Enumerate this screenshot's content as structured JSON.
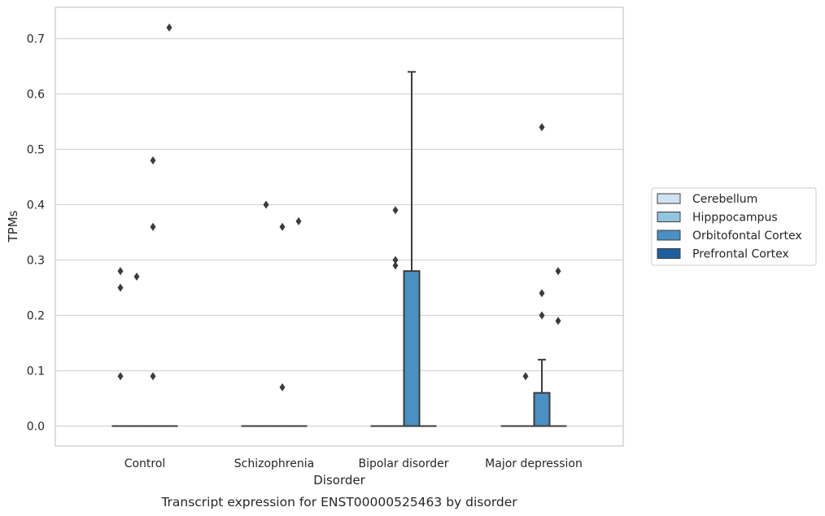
{
  "chart_data": {
    "type": "box",
    "title": "",
    "caption": "Transcript expression for ENST00000525463 by disorder",
    "xlabel": "Disorder",
    "ylabel": "TPMs",
    "ylim": [
      -0.035,
      0.76
    ],
    "yticks": [
      0.0,
      0.1,
      0.2,
      0.3,
      0.4,
      0.5,
      0.6,
      0.7
    ],
    "ytick_labels": [
      "0.0",
      "0.1",
      "0.2",
      "0.3",
      "0.4",
      "0.5",
      "0.6",
      "0.7"
    ],
    "grid": "horizontal",
    "legend_position": "right",
    "categories": [
      "Control",
      "Schizophrenia",
      "Bipolar disorder",
      "Major depression"
    ],
    "series": [
      {
        "name": "Cerebellum",
        "color": "#cfe1f2",
        "boxes": [
          {
            "q1": 0,
            "median": 0,
            "q3": 0,
            "whisker_low": 0,
            "whisker_high": 0,
            "outliers": [
              0.09,
              0.25,
              0.28
            ]
          },
          {
            "q1": 0,
            "median": 0,
            "q3": 0,
            "whisker_low": 0,
            "whisker_high": 0,
            "outliers": []
          },
          {
            "q1": 0,
            "median": 0,
            "q3": 0,
            "whisker_low": 0,
            "whisker_high": 0,
            "outliers": []
          },
          {
            "q1": 0,
            "median": 0,
            "q3": 0,
            "whisker_low": 0,
            "whisker_high": 0,
            "outliers": []
          }
        ]
      },
      {
        "name": "Hipppocampus",
        "color": "#93c4de",
        "boxes": [
          {
            "q1": 0,
            "median": 0,
            "q3": 0,
            "whisker_low": 0,
            "whisker_high": 0,
            "outliers": [
              0.27
            ]
          },
          {
            "q1": 0,
            "median": 0,
            "q3": 0,
            "whisker_low": 0,
            "whisker_high": 0,
            "outliers": [
              0.4
            ]
          },
          {
            "q1": 0,
            "median": 0,
            "q3": 0,
            "whisker_low": 0,
            "whisker_high": 0,
            "outliers": [
              0.29,
              0.3,
              0.39
            ]
          },
          {
            "q1": 0,
            "median": 0,
            "q3": 0,
            "whisker_low": 0,
            "whisker_high": 0,
            "outliers": [
              0.09
            ]
          }
        ]
      },
      {
        "name": "Orbitofontal Cortex",
        "color": "#4a90c2",
        "boxes": [
          {
            "q1": 0,
            "median": 0,
            "q3": 0,
            "whisker_low": 0,
            "whisker_high": 0,
            "outliers": [
              0.09,
              0.36,
              0.48
            ]
          },
          {
            "q1": 0,
            "median": 0,
            "q3": 0,
            "whisker_low": 0,
            "whisker_high": 0,
            "outliers": [
              0.07,
              0.36
            ]
          },
          {
            "q1": 0,
            "median": 0,
            "q3": 0.28,
            "whisker_low": 0,
            "whisker_high": 0.64,
            "outliers": []
          },
          {
            "q1": 0,
            "median": 0,
            "q3": 0.06,
            "whisker_low": 0,
            "whisker_high": 0.12,
            "outliers": [
              0.2,
              0.24,
              0.54
            ]
          }
        ]
      },
      {
        "name": "Prefrontal Cortex",
        "color": "#1f5fa0",
        "boxes": [
          {
            "q1": 0,
            "median": 0,
            "q3": 0,
            "whisker_low": 0,
            "whisker_high": 0,
            "outliers": [
              0.72
            ]
          },
          {
            "q1": 0,
            "median": 0,
            "q3": 0,
            "whisker_low": 0,
            "whisker_high": 0,
            "outliers": [
              0.37
            ]
          },
          {
            "q1": 0,
            "median": 0,
            "q3": 0,
            "whisker_low": 0,
            "whisker_high": 0,
            "outliers": []
          },
          {
            "q1": 0,
            "median": 0,
            "q3": 0,
            "whisker_low": 0,
            "whisker_high": 0,
            "outliers": [
              0.19,
              0.28
            ]
          }
        ]
      }
    ]
  }
}
